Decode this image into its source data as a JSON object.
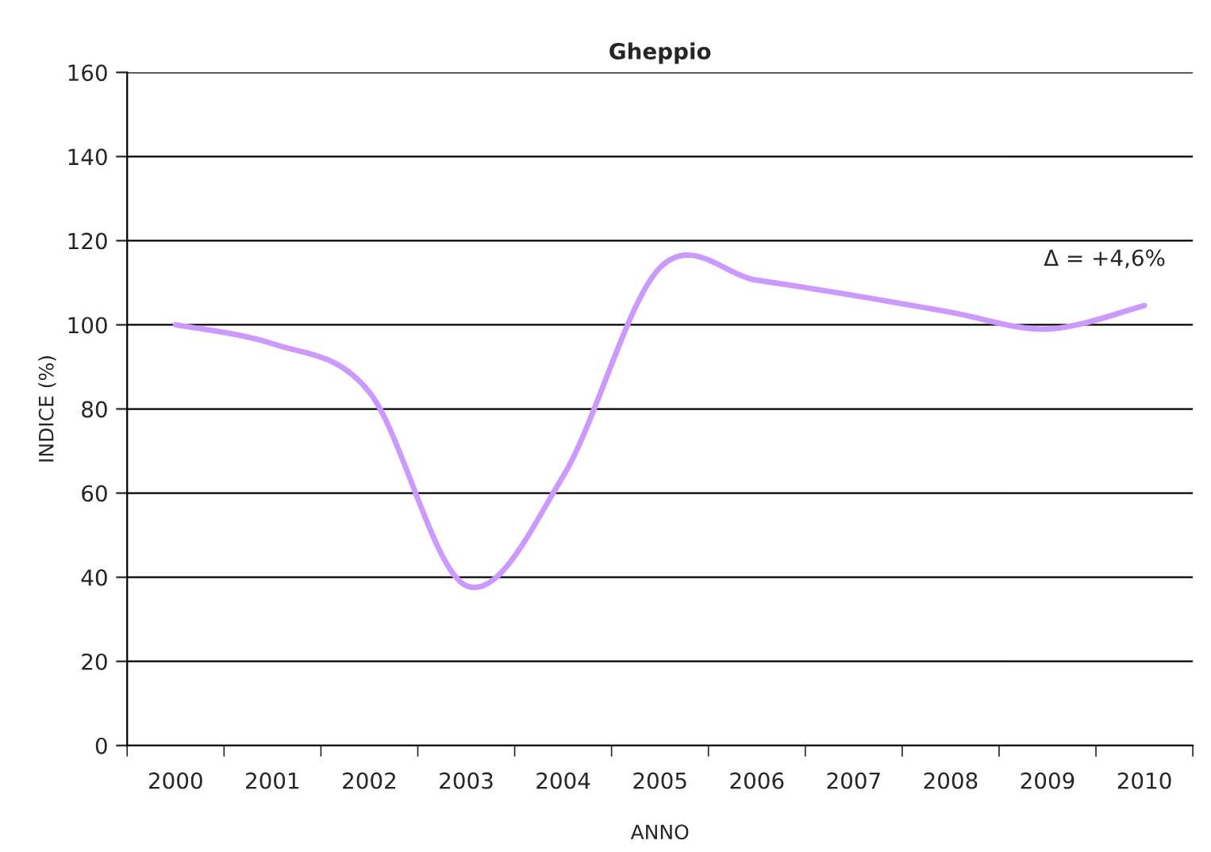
{
  "chart_data": {
    "type": "line",
    "title": "Gheppio",
    "xlabel": "ANNO",
    "ylabel": "INDICE (%)",
    "categories": [
      "2000",
      "2001",
      "2002",
      "2003",
      "2004",
      "2005",
      "2006",
      "2007",
      "2008",
      "2009",
      "2010"
    ],
    "series": [
      {
        "color": "#cc99ff",
        "values": [
          100,
          95.5,
          84,
          38,
          64,
          113.6,
          110.6,
          107,
          103,
          99,
          104.6
        ]
      }
    ],
    "ylim": [
      0,
      160
    ],
    "yticks": [
      0,
      20,
      40,
      60,
      80,
      100,
      120,
      140,
      160
    ],
    "grid": "y",
    "annotations": [
      {
        "text": "Δ = +4,6%",
        "x": "2010",
        "y": 104.6
      }
    ]
  }
}
